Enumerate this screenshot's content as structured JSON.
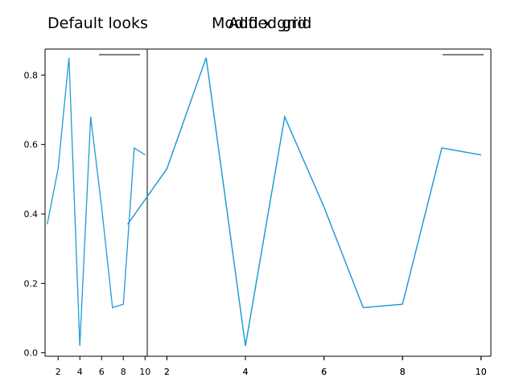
{
  "chart_data": [
    {
      "type": "line",
      "title": "Default looks",
      "x": [
        1,
        2,
        3,
        4,
        5,
        6,
        7,
        8,
        9,
        10
      ],
      "series": [
        {
          "values": [
            0.37,
            0.53,
            0.85,
            0.02,
            0.68,
            0.42,
            0.13,
            0.14,
            0.59,
            0.57
          ],
          "color": "#1f9ad6"
        }
      ],
      "xticks": [
        "2",
        "4",
        "6",
        "8",
        "10"
      ],
      "yticks": [
        "0.0",
        "0.2",
        "0.4",
        "0.6",
        "0.8"
      ],
      "xlim": [
        0.8,
        10.2
      ],
      "ylim": [
        -0.01,
        0.875
      ],
      "legend": "top-right",
      "grid": false
    },
    {
      "type": "line",
      "title": "Modified grid",
      "x": [
        1,
        2,
        3,
        4,
        5,
        6,
        7,
        8,
        9,
        10
      ],
      "series": [
        {
          "values": [
            0.37,
            0.53,
            0.85,
            0.02,
            0.68,
            0.42,
            0.13,
            0.14,
            0.59,
            0.57
          ],
          "color": "#1f9ad6"
        }
      ],
      "xticks": [
        "2",
        "4",
        "6",
        "8",
        "10"
      ],
      "xlim": [
        1.5,
        10.25
      ],
      "ylim": [
        -0.01,
        0.875
      ],
      "legend": "top-right",
      "grid": false
    },
    {
      "type": "line",
      "title": "Add x grid",
      "x": [
        1,
        2,
        3,
        4,
        5,
        6,
        7,
        8,
        9,
        10
      ],
      "series": [
        {
          "values": [
            0.37,
            0.53,
            0.85,
            0.02,
            0.68,
            0.42,
            0.13,
            0.14,
            0.59,
            0.57
          ],
          "color": "#1f9ad6"
        }
      ],
      "xticks": [
        "2",
        "4",
        "6",
        "8",
        "10"
      ],
      "xlim": [
        1.5,
        10.25
      ],
      "ylim": [
        -0.01,
        0.875
      ],
      "legend": "top-right",
      "grid": true
    }
  ]
}
